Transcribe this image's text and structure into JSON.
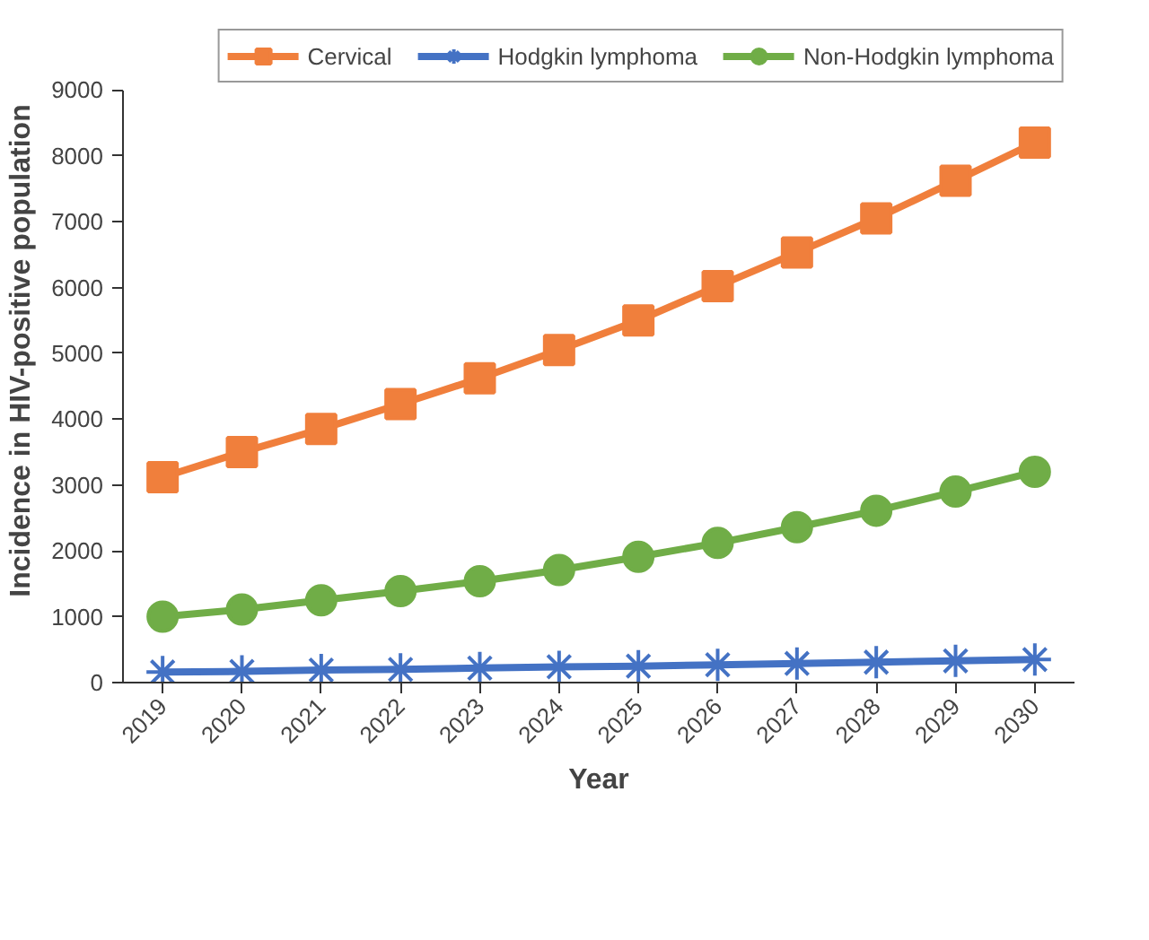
{
  "chart_data": {
    "type": "line",
    "xlabel": "Year",
    "ylabel": "Incidence in HIV-positive population",
    "categories": [
      "2019",
      "2020",
      "2021",
      "2022",
      "2023",
      "2024",
      "2025",
      "2026",
      "2027",
      "2028",
      "2029",
      "2030"
    ],
    "series": [
      {
        "name": "Cervical",
        "color": "#f07f3c",
        "marker": "square",
        "values": [
          3120,
          3500,
          3850,
          4230,
          4620,
          5050,
          5500,
          6020,
          6530,
          7050,
          7620,
          8200
        ]
      },
      {
        "name": "Hodgkin lymphoma",
        "color": "#4472c4",
        "marker": "cross",
        "values": [
          160,
          170,
          190,
          200,
          220,
          240,
          250,
          270,
          290,
          310,
          330,
          350
        ]
      },
      {
        "name": "Non-Hodgkin lymphoma",
        "color": "#70ad47",
        "marker": "circle",
        "values": [
          1000,
          1110,
          1250,
          1390,
          1540,
          1710,
          1910,
          2120,
          2360,
          2610,
          2900,
          3200
        ]
      }
    ],
    "ylim": [
      0,
      9000
    ],
    "yticks": [
      0,
      1000,
      2000,
      3000,
      4000,
      5000,
      6000,
      7000,
      8000,
      9000
    ],
    "grid": false,
    "legend": "top",
    "line_style": "solid"
  }
}
